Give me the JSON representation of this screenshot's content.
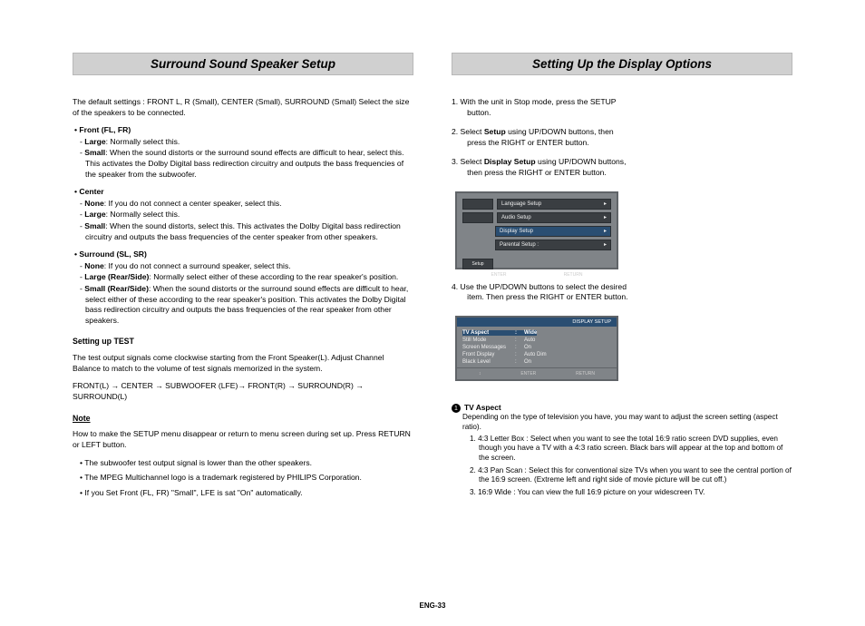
{
  "left": {
    "header": "Surround Sound Speaker Setup",
    "intro": "The default settings : FRONT L, R (Small), CENTER (Small), SURROUND (Small) Select the size of the speakers to be connected.",
    "front": {
      "title": "Front (FL, FR)",
      "large": "Large: Normally select this.",
      "small": "Small: When the sound distorts or the surround sound effects are difficult to hear, select this. This activates the Dolby Digital bass redirection circuitry and outputs the bass frequencies of the speaker from the subwoofer."
    },
    "center": {
      "title": "Center",
      "none": "None: If you do not connect a center speaker, select this.",
      "large": "Large: Normally select this.",
      "small": "Small: When the sound distorts, select this. This activates the Dolby Digital bass redirection circuitry and outputs the bass frequencies of the center speaker from other speakers."
    },
    "surround": {
      "title": "Surround (SL, SR)",
      "none": "None: If you do not connect a surround speaker, select this.",
      "large": "Large (Rear/Side): Normally select either of these according to the rear speaker's position.",
      "small": "Small (Rear/Side): When the sound distorts or the surround sound effects are difficult to hear, select either of these according to the rear speaker's position. This activates the Dolby Digital bass redirection circuitry and outputs the bass frequencies of the rear speaker from other speakers."
    },
    "test": {
      "title": "Setting up TEST",
      "body": "The test output signals come clockwise starting from the Front Speaker(L). Adjust Channel Balance to match to the volume of test signals memorized in the system.",
      "chain": "FRONT(L) → CENTER → SUBWOOFER (LFE)→ FRONT(R) → SURROUND(R) → SURROUND(L)"
    },
    "note": {
      "title": "Note",
      "intro": "How to make the SETUP menu disappear or return to menu screen during set up. Press RETURN or LEFT button.",
      "b1": "The subwoofer test output signal is lower than the other speakers.",
      "b2": "The MPEG Multichannel logo is a trademark registered by PHILIPS Corporation.",
      "b3": "If you Set Front (FL, FR) \"Small\", LFE is sat \"On\" automatically."
    }
  },
  "right": {
    "header": "Setting Up the Display Options",
    "step1_a": "1. With the unit in Stop mode, press the SETUP",
    "step1_b": "button.",
    "step2_a": "2. Select ",
    "step2_bold": "Setup",
    "step2_b": " using UP/DOWN buttons, then",
    "step2_c": "press the RIGHT or ENTER button.",
    "step3_a": "3. Select ",
    "step3_bold": "Display Setup",
    "step3_b": " using UP/DOWN buttons,",
    "step3_c": "then press the RIGHT or ENTER button.",
    "step4_a": "4. Use the UP/DOWN buttons to select the desired",
    "step4_b": "item. Then press the RIGHT or ENTER button.",
    "osd1": {
      "tab1": "",
      "tab2": "",
      "item1": "Language Setup",
      "item2": "Audio Setup",
      "item3": "Display Setup",
      "item4": "Parental Setup :",
      "bottom_tab": "Setup",
      "footer1": "ENTER",
      "footer2": "RETURN",
      "arrow": "▸"
    },
    "osd2": {
      "title": "DISPLAY SETUP",
      "rows": [
        {
          "k": "TV Aspect",
          "v": "Wide",
          "sel": true
        },
        {
          "k": "Still Mode",
          "v": "Auto",
          "sel": false
        },
        {
          "k": "Screen Messages",
          "v": "On",
          "sel": false
        },
        {
          "k": "Front Display",
          "v": "Auto Dim",
          "sel": false
        },
        {
          "k": "Black Level",
          "v": "On",
          "sel": false
        }
      ],
      "sep": ":",
      "footer": [
        "↕",
        "ENTER",
        "RETURN"
      ]
    },
    "tvaspect": {
      "num": "1",
      "title": "TV Aspect",
      "intro": "Depending on the type of television you have, you may want to adjust the screen setting (aspect ratio).",
      "o1": "1. 4:3 Letter Box : Select when you want to see the total 16:9 ratio screen DVD supplies, even though you have a TV with a 4:3 ratio screen. Black bars will appear at the top and bottom of the screen.",
      "o2": "2. 4:3 Pan Scan : Select this for conventional size TVs when you want to see the central portion of the 16:9 screen. (Extreme left and right side of movie picture will be cut off.)",
      "o3": "3. 16:9 Wide : You can view the full 16:9 picture on your widescreen TV."
    }
  },
  "page_num": "ENG-33"
}
